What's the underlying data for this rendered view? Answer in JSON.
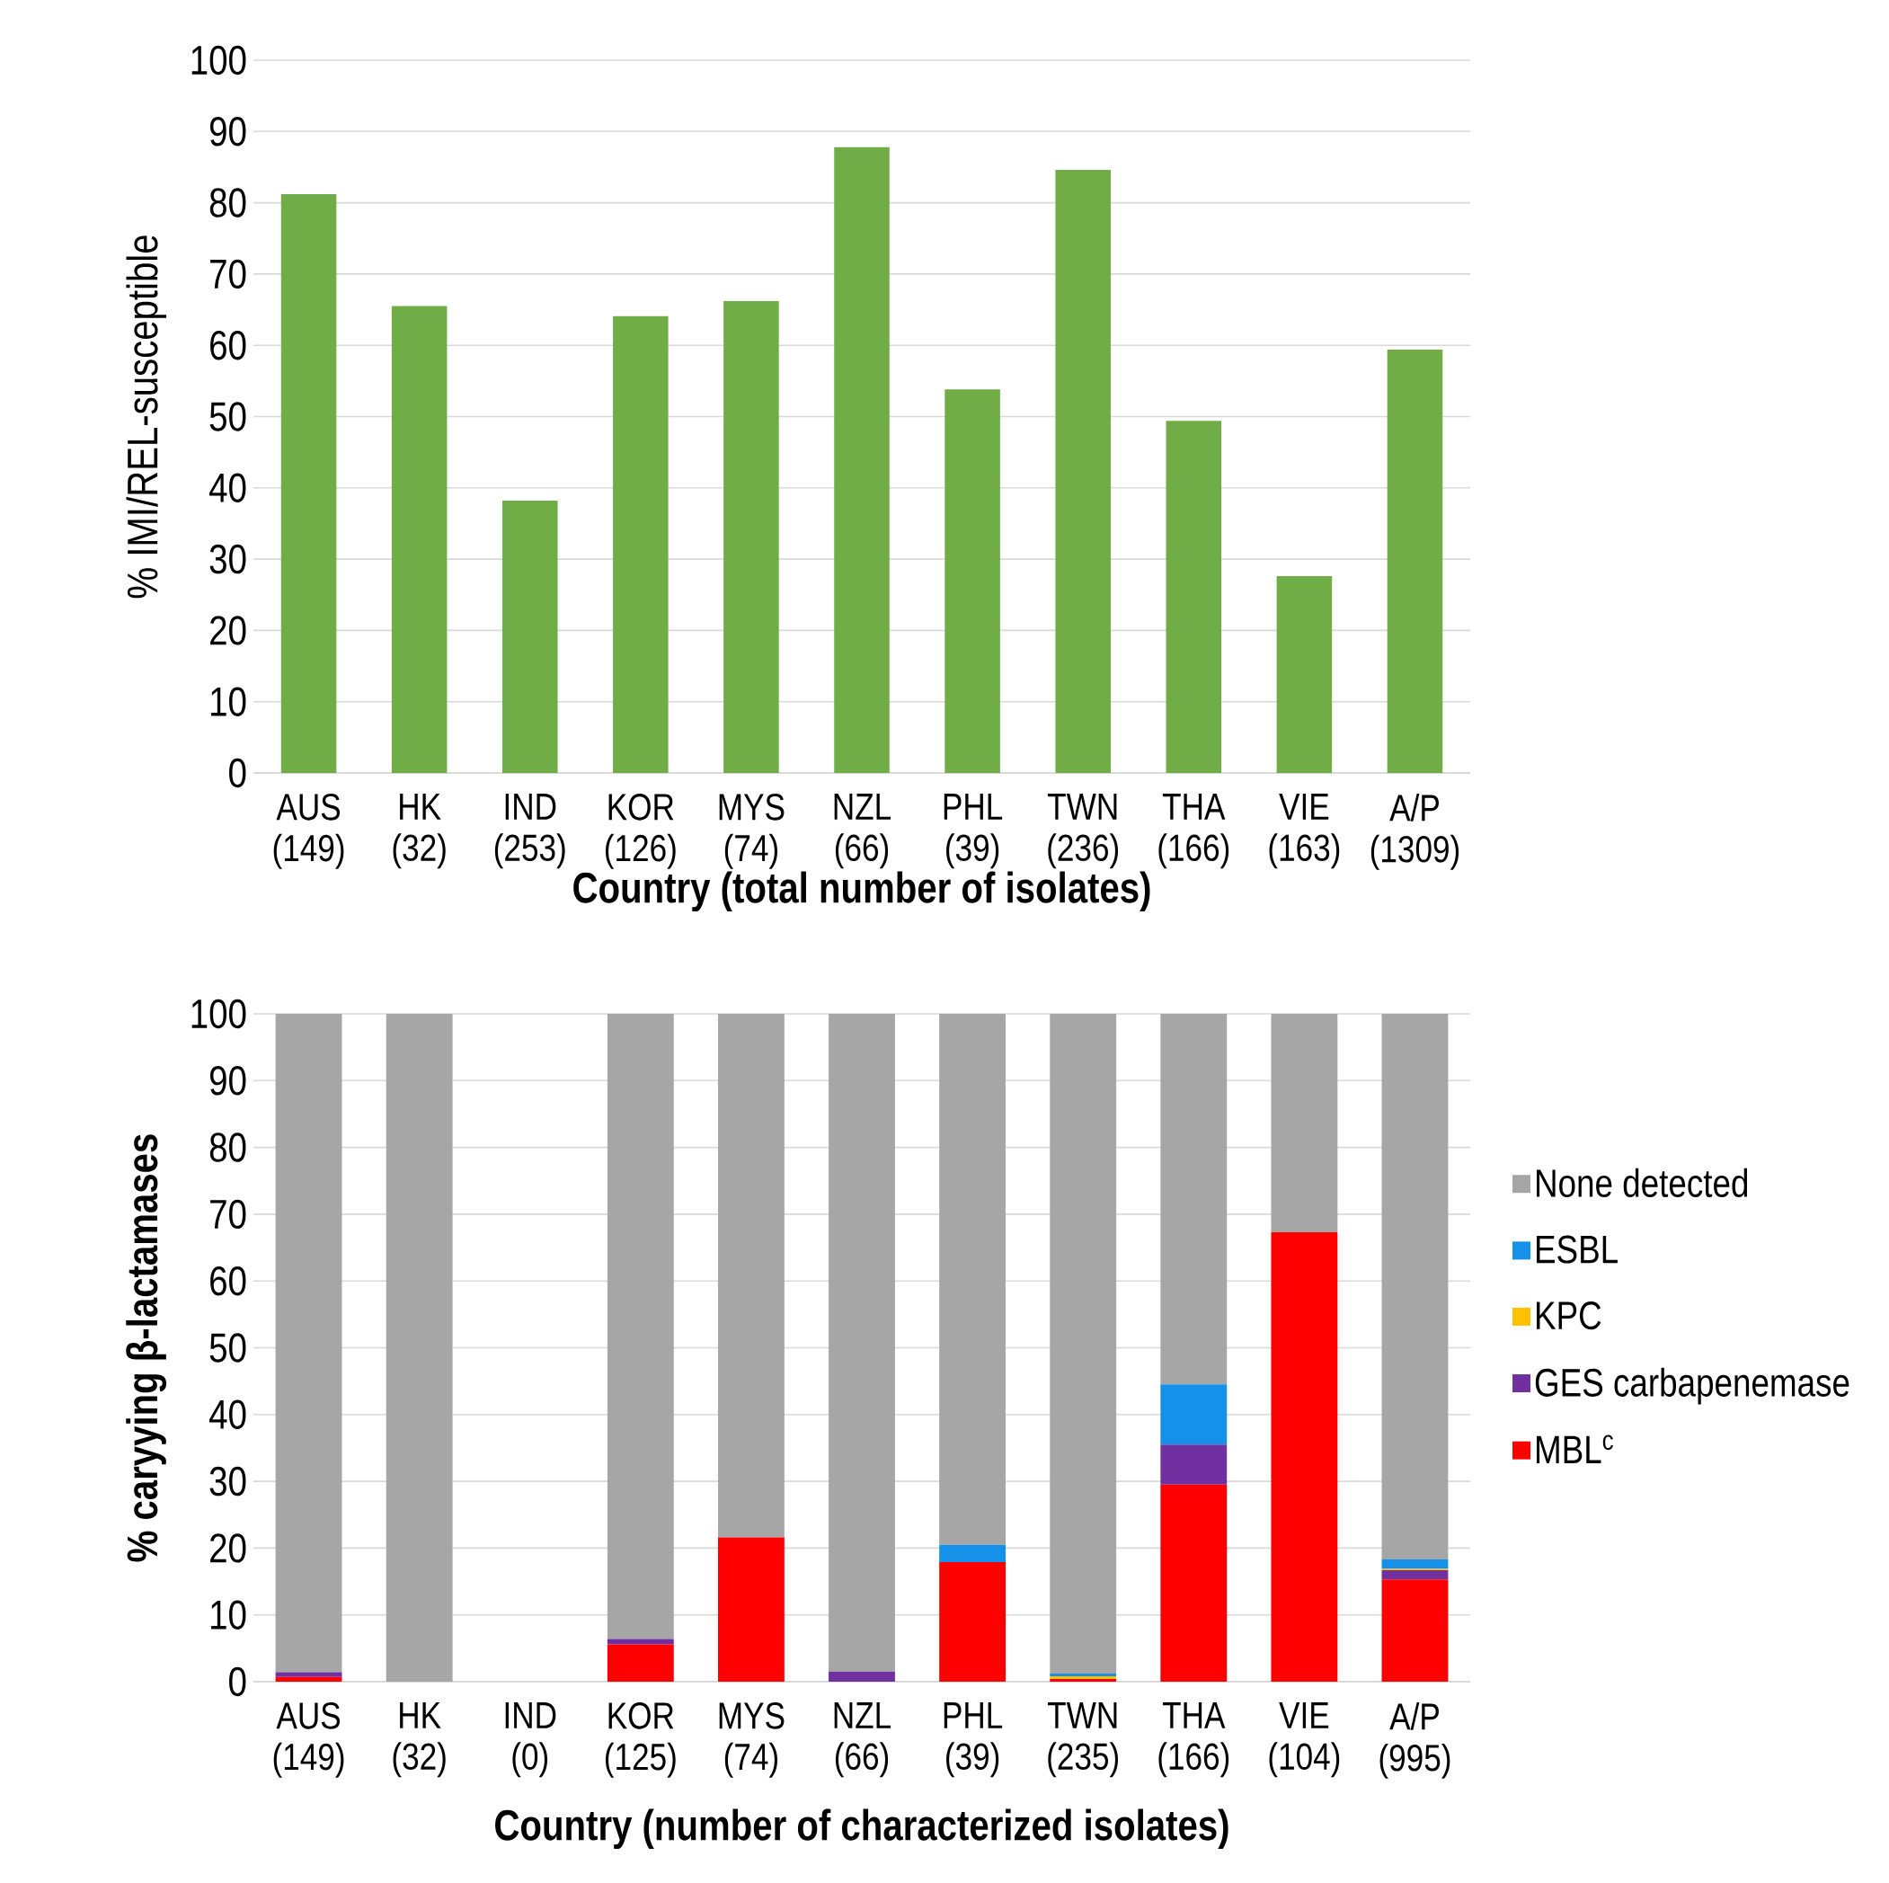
{
  "chart_data": [
    {
      "type": "bar",
      "xlabel": "Country (total number of isolates)",
      "ylabel": "% IMI/REL-susceptible",
      "categories": [
        "AUS (149)",
        "HK (32)",
        "IND (253)",
        "KOR (126)",
        "MYS (74)",
        "NZL (66)",
        "PHL (39)",
        "TWN (236)",
        "THA (166)",
        "VIE (163)",
        "A/P (1309)"
      ],
      "values": [
        81.2,
        65.5,
        38.2,
        64.1,
        66.2,
        87.8,
        53.8,
        84.6,
        49.4,
        27.6,
        59.4
      ],
      "color": "#70ad47",
      "ylim": [
        0,
        100
      ],
      "yticks": [
        0,
        10,
        20,
        30,
        40,
        50,
        60,
        70,
        80,
        90,
        100
      ],
      "grid": "y"
    },
    {
      "type": "bar",
      "stacked": true,
      "xlabel": "Country (number of characterized isolates)",
      "ylabel": "% caryying β-lactamases",
      "categories": [
        "AUS (149)",
        "HK (32)",
        "IND (0)",
        "KOR (125)",
        "MYS (74)",
        "NZL (66)",
        "PHL (39)",
        "TWN (235)",
        "THA (166)",
        "VIE (104)",
        "A/P (995)"
      ],
      "series": [
        {
          "name": "MBL$^{c}$",
          "color": "#ff0000",
          "values": [
            0.7,
            0,
            0,
            5.6,
            21.6,
            0,
            17.9,
            0.4,
            29.5,
            67.3,
            15.3
          ]
        },
        {
          "name": "GES carbapenemase",
          "color": "#7030a0",
          "values": [
            0.7,
            0,
            0,
            0.8,
            0,
            1.5,
            0,
            0,
            6,
            0,
            1.4
          ]
        },
        {
          "name": "KPC",
          "color": "#ffc000",
          "values": [
            0,
            0,
            0,
            0,
            0,
            0,
            0,
            0.4,
            0,
            0,
            0.2
          ]
        },
        {
          "name": "ESBL",
          "color": "#1591ea",
          "values": [
            0,
            0,
            0,
            0,
            0,
            0,
            2.6,
            0.4,
            9,
            0,
            1.4
          ]
        },
        {
          "name": "None detected",
          "color": "#a6a6a6",
          "values": [
            98.6,
            100,
            0,
            93.6,
            78.4,
            98.5,
            79.5,
            98.8,
            55.5,
            32.7,
            81.7
          ]
        }
      ],
      "ylim": [
        0,
        100
      ],
      "yticks": [
        0,
        10,
        20,
        30,
        40,
        50,
        60,
        70,
        80,
        90,
        100
      ],
      "grid": "y",
      "legend": "right"
    }
  ]
}
